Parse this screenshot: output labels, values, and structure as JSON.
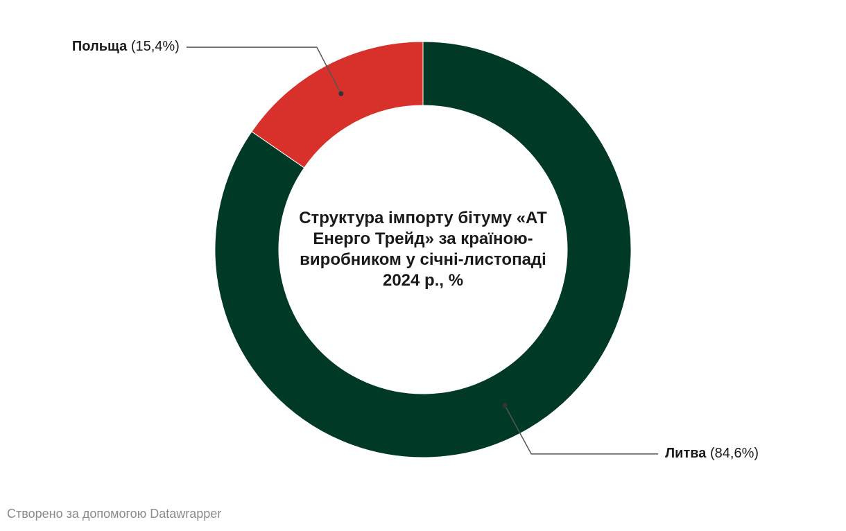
{
  "chart_data": {
    "type": "donut",
    "title": "Структура імпорту бітуму «АТ Енерго Трейд» за країною-виробником у січні-листопаді 2024 р., %",
    "categories": [
      "Литва",
      "Польща"
    ],
    "values": [
      84.6,
      15.4
    ],
    "value_labels": [
      "(84,6%)",
      "(15,4%)"
    ],
    "colors": [
      "#003a26",
      "#d8302a"
    ]
  },
  "footer": "Створено за допомогою Datawrapper"
}
